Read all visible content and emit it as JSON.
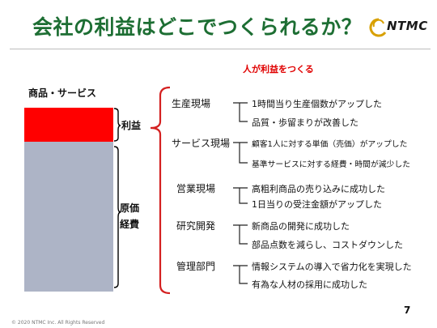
{
  "title": "会社の利益はどこでつくられるか？",
  "logo_text": "NTMC",
  "subtitle": "人が利益をつくる",
  "bar_title": "商品・サービス",
  "profit_label": "利益",
  "cost_label_1": "原価",
  "cost_label_2": "経費",
  "categories": [
    {
      "name": "生産現場",
      "items": [
        "1時間当り生産個数がアップした",
        "品質・歩留まりが改善した"
      ]
    },
    {
      "name": "サービス現場",
      "items": [
        "顧客1人に対する単価（売価）がアップした",
        "基準サービスに対する経費・時間が減少した"
      ]
    },
    {
      "name": "営業現場",
      "items": [
        "高粗利商品の売り込みに成功した",
        "1日当りの受注金額がアップした"
      ]
    },
    {
      "name": "研究開発",
      "items": [
        "新商品の開発に成功した",
        "部品点数を減らし、コストダウンした"
      ]
    },
    {
      "name": "管理部門",
      "items": [
        "情報システムの導入で省力化を実現した",
        "有為な人材の採用に成功した"
      ]
    }
  ],
  "page_number": "7",
  "copyright": "© 2020 NTMC Inc. All Rights Reserved",
  "colors": {
    "title": "#1d6e33",
    "accent": "#e00000",
    "profit_bar": "#ff0000",
    "cost_bar": "#adb4c6",
    "bracket": "#d42020"
  }
}
